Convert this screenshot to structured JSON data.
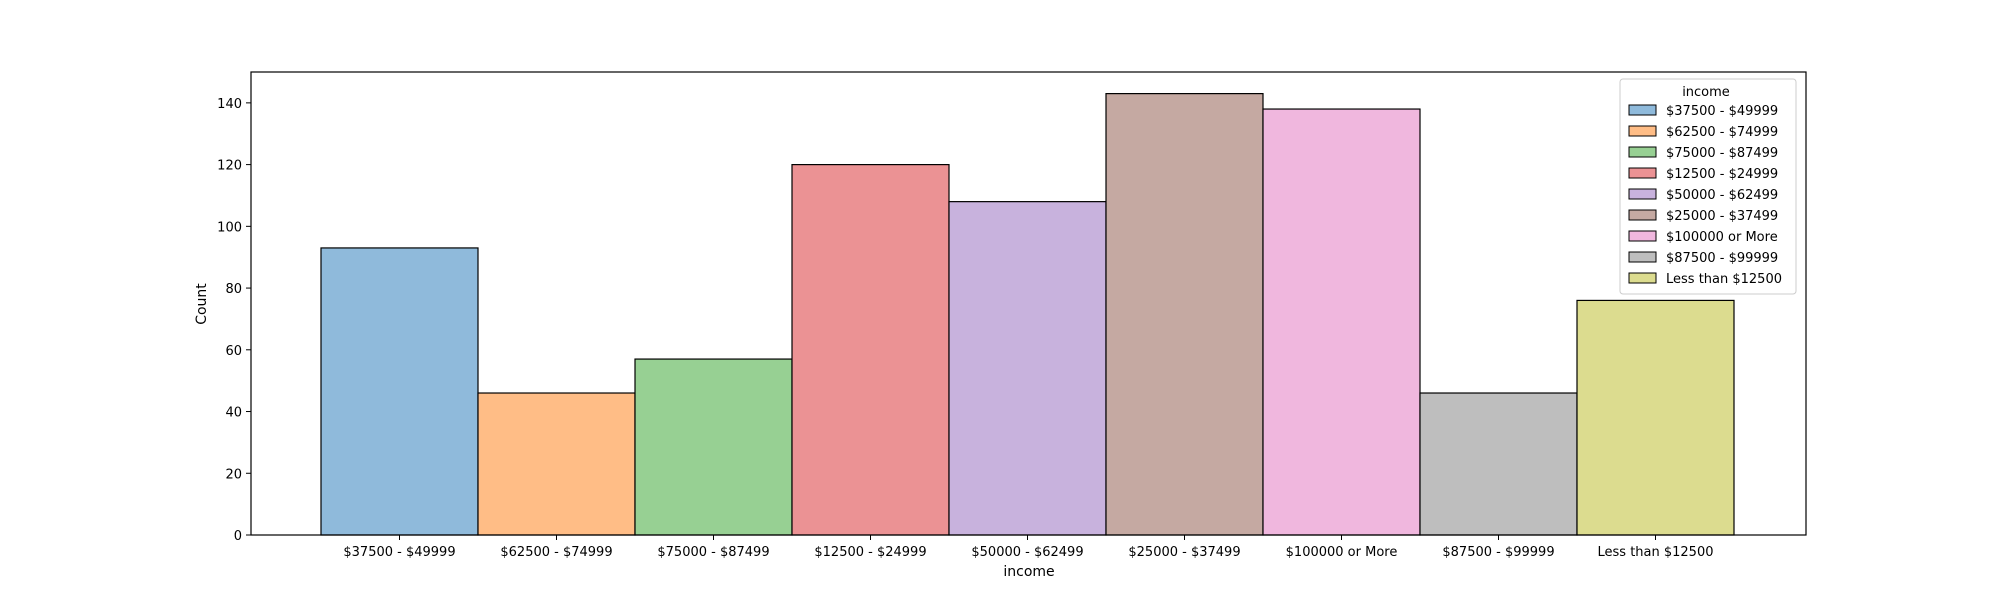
{
  "chart_data": {
    "type": "bar",
    "title": "",
    "xlabel": "income",
    "ylabel": "Count",
    "ylim": [
      0,
      150
    ],
    "yticks": [
      0,
      20,
      40,
      60,
      80,
      100,
      120,
      140
    ],
    "categories": [
      "$37500 - $49999",
      "$62500 - $74999",
      "$75000 - $87499",
      "$12500 - $24999",
      "$50000 - $62499",
      "$25000 - $37499",
      "$100000 or More",
      "$87500 - $99999",
      "Less than $12500"
    ],
    "values": [
      93,
      46,
      57,
      120,
      108,
      143,
      138,
      46,
      76
    ],
    "colors": [
      "#8fbadb",
      "#ffbd86",
      "#97d093",
      "#eb9294",
      "#c8b2dd",
      "#c5a9a2",
      "#f0b7de",
      "#bebebe",
      "#dcdc8f"
    ],
    "legend": {
      "title": "income",
      "placement": "top-right"
    },
    "grid": false
  }
}
